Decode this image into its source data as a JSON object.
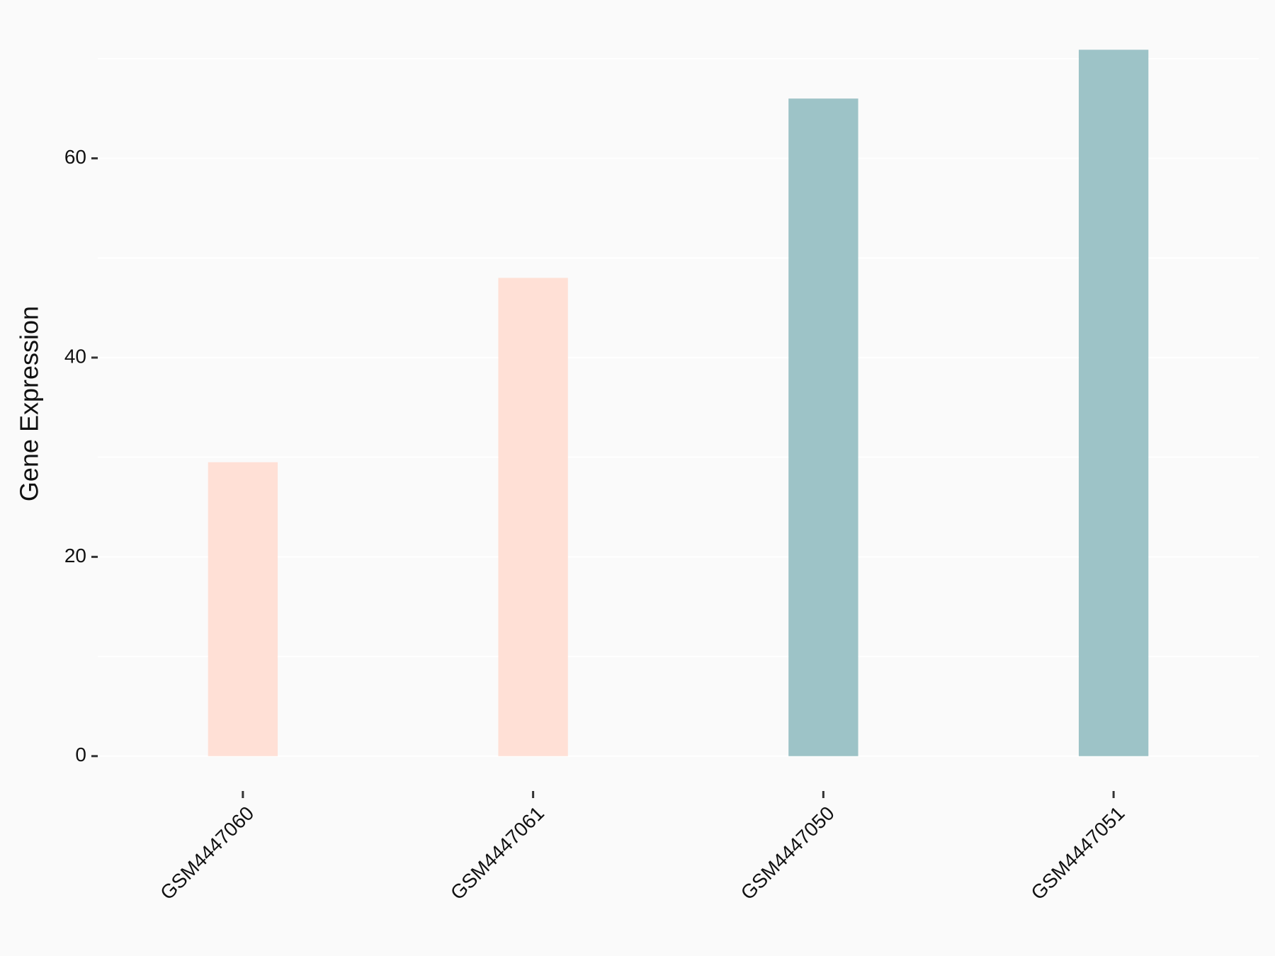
{
  "chart_data": {
    "type": "bar",
    "y_label": "Gene Expression",
    "categories": [
      "GSM4447060",
      "GSM4447061",
      "GSM4447050",
      "GSM4447051"
    ],
    "values": [
      29.5,
      48.0,
      66.0,
      70.9
    ],
    "colors": [
      "#ffe0d6",
      "#ffe0d6",
      "#9dc3c7",
      "#9dc3c7"
    ],
    "ylim": [
      -3.5,
      74.4
    ],
    "yticks": [
      0,
      20,
      40,
      60
    ],
    "minor_grid": [
      10,
      30,
      50,
      70
    ],
    "grid": true
  }
}
